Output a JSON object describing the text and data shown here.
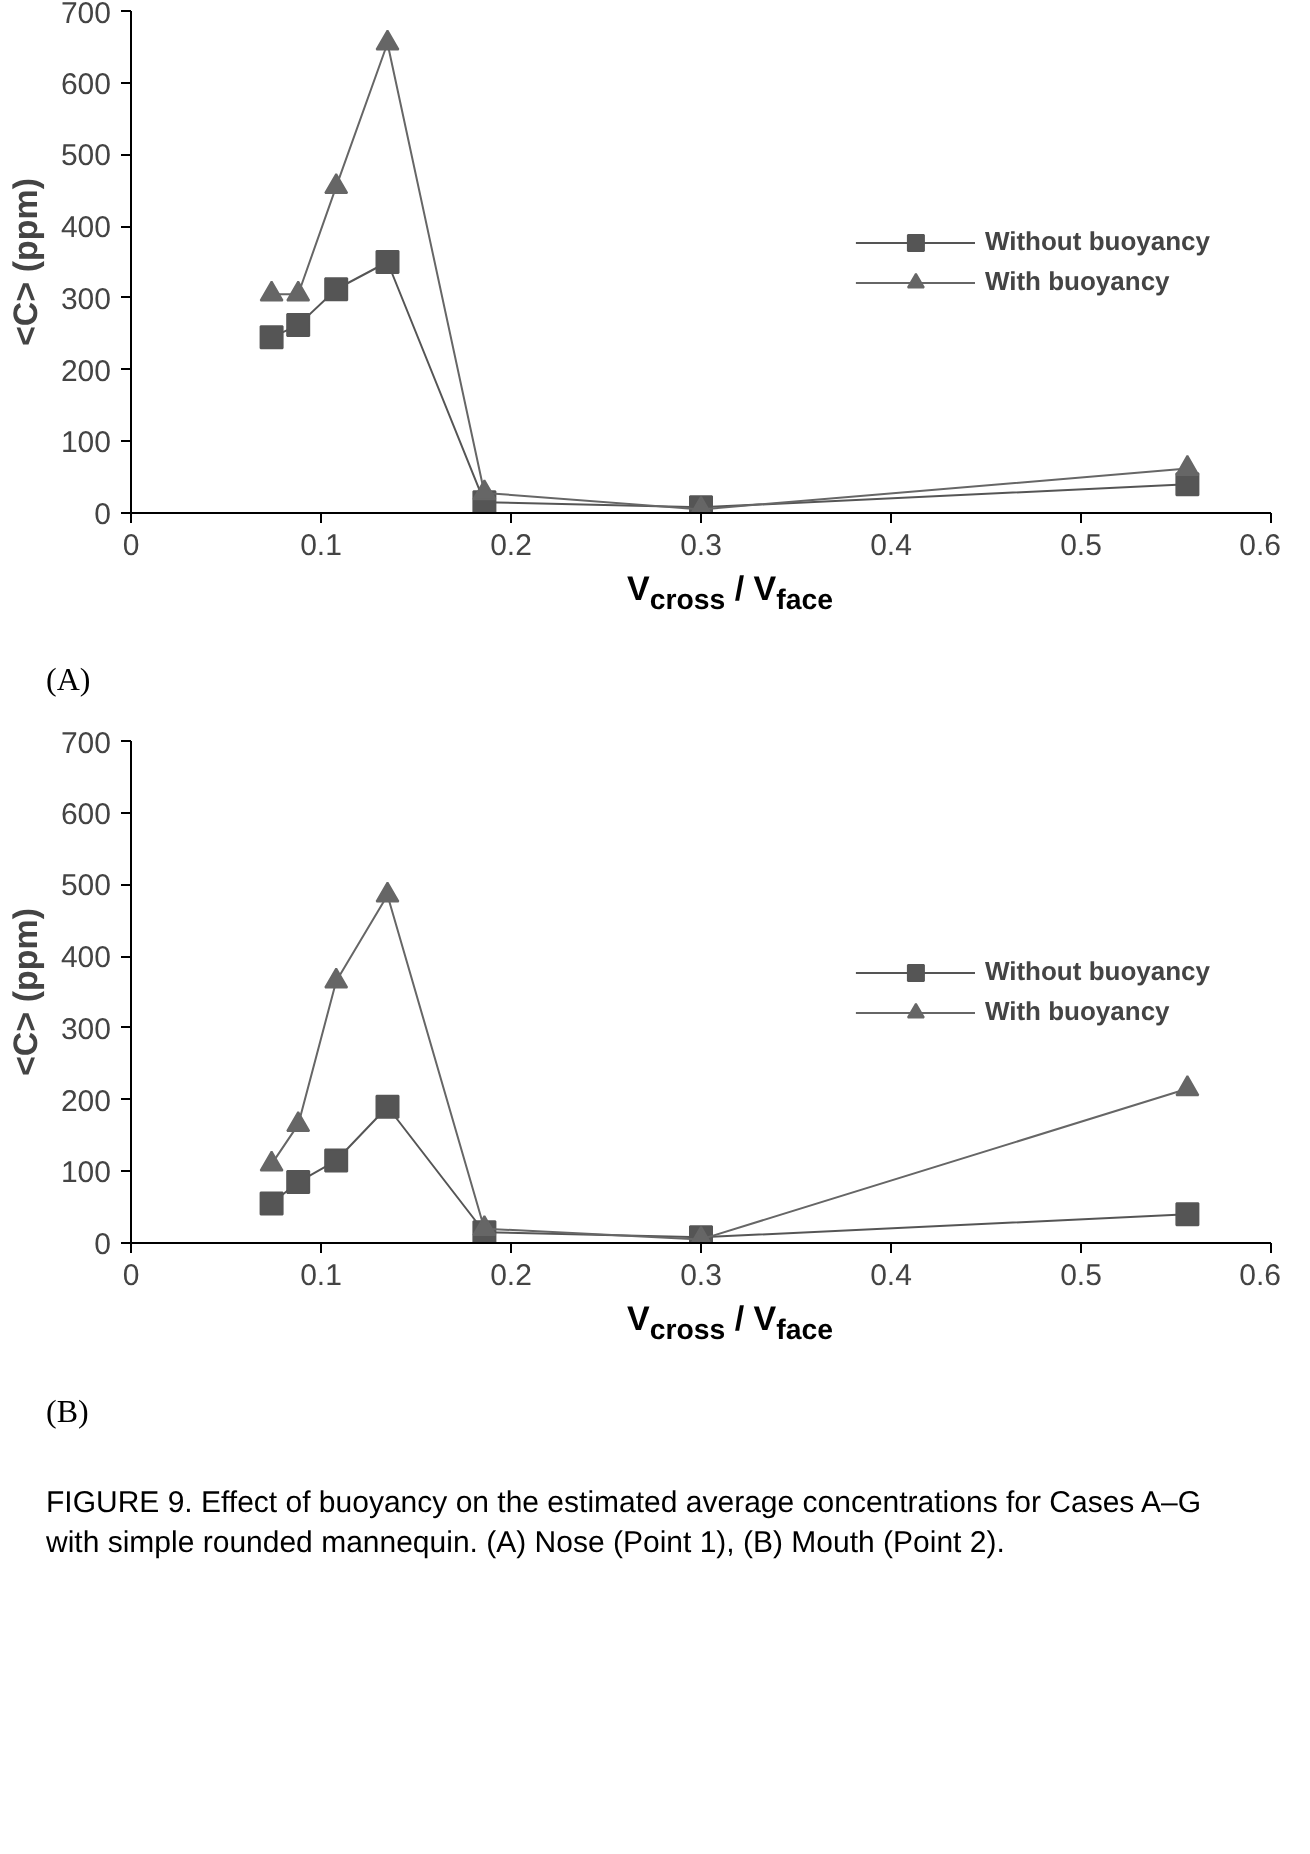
{
  "chart_data": [
    {
      "type": "line",
      "xlabel": "V$_{cross}$ / V$_{face}$",
      "ylabel": "<C> (ppm)",
      "xlim": [
        0,
        0.6
      ],
      "xticks": [
        0,
        0.1,
        0.2,
        0.3,
        0.4,
        0.5,
        0.6
      ],
      "ylim": [
        0,
        700
      ],
      "yticks": [
        0,
        100,
        200,
        300,
        400,
        500,
        600,
        700
      ],
      "grid": false,
      "legend": "right",
      "x": [
        0.074,
        0.088,
        0.108,
        0.135,
        0.186,
        0.3,
        0.556
      ],
      "series": [
        {
          "name": "Without buoyancy",
          "color": "#555555",
          "marker": "square",
          "values": [
            245,
            262,
            312,
            350,
            15,
            8,
            40
          ]
        },
        {
          "name": "With buoyancy",
          "color": "#666666",
          "marker": "triangle",
          "values": [
            305,
            305,
            455,
            655,
            28,
            5,
            62
          ]
        }
      ],
      "annotations": [
        "(A)"
      ]
    },
    {
      "type": "line",
      "xlabel": "V$_{cross}$ / V$_{face}$",
      "ylabel": "<C> (ppm)",
      "xlim": [
        0,
        0.6
      ],
      "xticks": [
        0,
        0.1,
        0.2,
        0.3,
        0.4,
        0.5,
        0.6
      ],
      "ylim": [
        0,
        700
      ],
      "yticks": [
        0,
        100,
        200,
        300,
        400,
        500,
        600,
        700
      ],
      "grid": false,
      "legend": "right",
      "x": [
        0.074,
        0.088,
        0.108,
        0.135,
        0.186,
        0.3,
        0.556
      ],
      "series": [
        {
          "name": "Without buoyancy",
          "color": "#555555",
          "marker": "square",
          "values": [
            55,
            85,
            115,
            190,
            15,
            8,
            40
          ]
        },
        {
          "name": "With buoyancy",
          "color": "#666666",
          "marker": "triangle",
          "values": [
            110,
            165,
            365,
            485,
            20,
            5,
            215
          ]
        }
      ],
      "annotations": [
        "(B)",
        "FIGURE 9.   Effect of buoyancy on the estimated average concentrations for Cases A–G with simple rounded mannequin. (A) Nose (Point 1), (B) Mouth (Point 2)."
      ]
    }
  ]
}
